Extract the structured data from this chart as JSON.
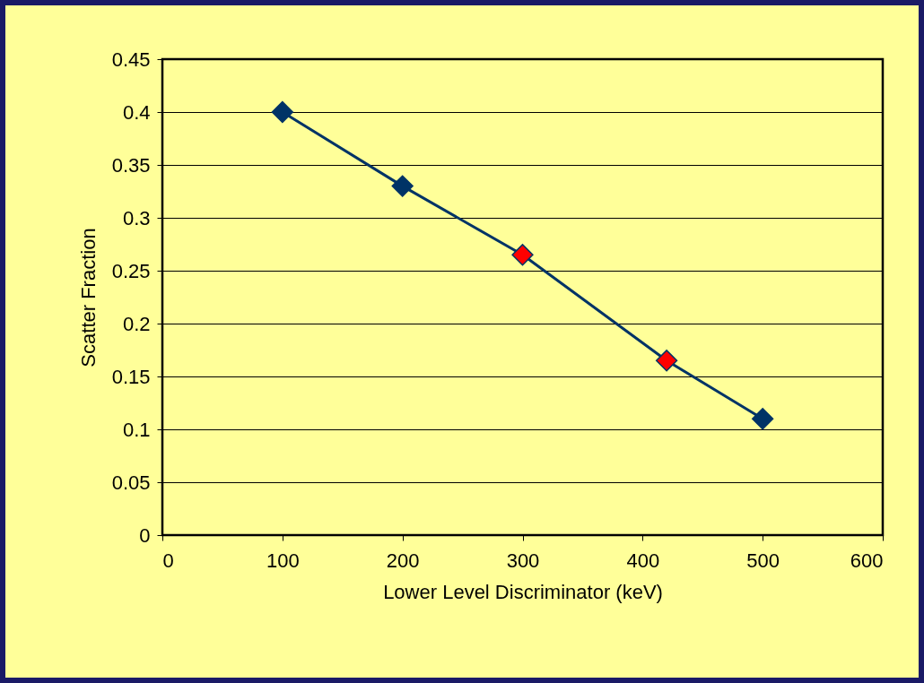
{
  "chart_data": {
    "type": "line",
    "xlabel": "Lower Level Discriminator (keV)",
    "ylabel": "Scatter Fraction",
    "x": [
      100,
      200,
      300,
      420,
      500
    ],
    "series": [
      {
        "color": "#003366",
        "colors": [
          "#003366",
          "#003366",
          "#ff0000",
          "#ff0000",
          "#003366"
        ],
        "values": [
          0.4,
          0.33,
          0.265,
          0.165,
          0.11
        ]
      }
    ],
    "xlim": [
      0,
      600
    ],
    "xticks": [
      0,
      100,
      200,
      300,
      400,
      500,
      600
    ],
    "ylim": [
      0,
      0.45
    ],
    "yticks": [
      0,
      0.05,
      0.1,
      0.15,
      0.2,
      0.25,
      0.3,
      0.35,
      0.4,
      0.45
    ],
    "grid": "y",
    "marker": "diamond",
    "line_style": "solid"
  }
}
